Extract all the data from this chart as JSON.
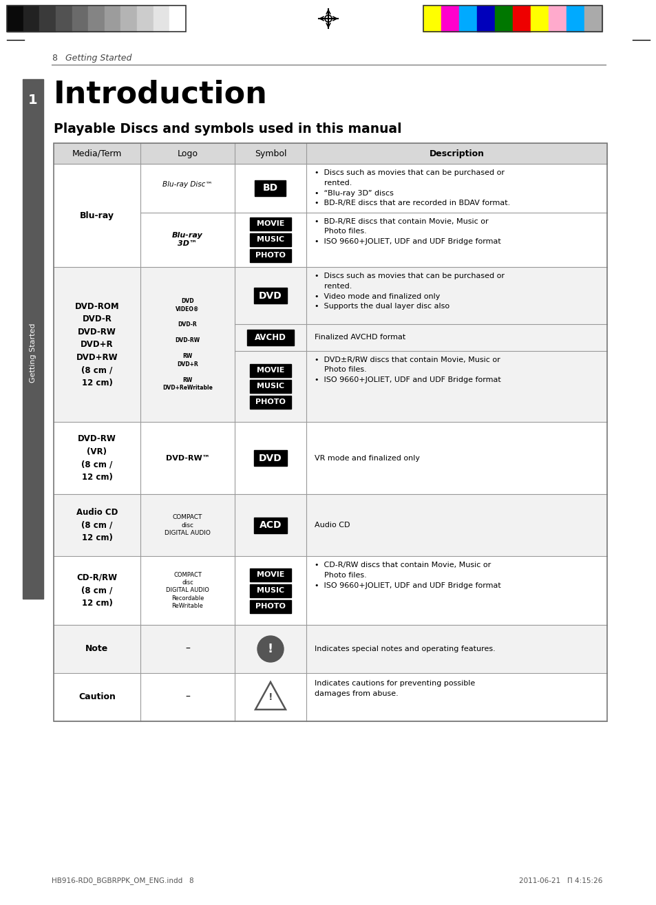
{
  "page_header_num": "8",
  "page_header_txt": "Getting Started",
  "title": "Introduction",
  "subtitle": "Playable Discs and symbols used in this manual",
  "col_headers": [
    "Media/Term",
    "Logo",
    "Symbol",
    "Description"
  ],
  "bg_color": "#ffffff",
  "header_bg": "#d8d8d8",
  "row_bg_white": "#ffffff",
  "row_bg_gray": "#f2f2f2",
  "sidebar_color": "#595959",
  "sidebar_text": "Getting Started",
  "sidebar_num": "1",
  "color_bar_left": [
    "#0a0a0a",
    "#222222",
    "#3a3a3a",
    "#525252",
    "#6a6a6a",
    "#848484",
    "#9c9c9c",
    "#b4b4b4",
    "#cccccc",
    "#e4e4e4",
    "#ffffff"
  ],
  "color_bar_right": [
    "#ffff00",
    "#ff00cc",
    "#00aaff",
    "#0000bb",
    "#007700",
    "#ee0000",
    "#ffff00",
    "#ffaacc",
    "#00aaff",
    "#aaaaaa"
  ],
  "footer_text": "HB916-RD0_BGBRPPK_OM_ENG.indd   8",
  "footer_date": "2011-06-21   Π 4:15:26"
}
